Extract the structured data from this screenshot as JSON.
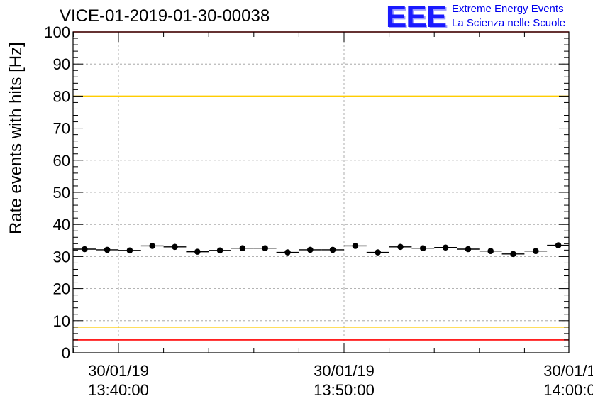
{
  "header": {
    "run_title": "VICE-01-2019-01-30-00038"
  },
  "logo": {
    "letters": "EEE",
    "line1": "Extreme Energy Events",
    "line2": "La Scienza nelle Scuole"
  },
  "chart_data": {
    "type": "scatter",
    "title": "VICE-01-2019-01-30-00038",
    "xlabel": "",
    "ylabel": "Rate events with hits [Hz]",
    "ylim": [
      0,
      100
    ],
    "xlim": [
      "2019-01-30 13:38:00",
      "2019-01-30 14:00:00"
    ],
    "yticks": [
      0,
      10,
      20,
      30,
      40,
      50,
      60,
      70,
      80,
      90,
      100
    ],
    "xticks": [
      {
        "x": "2019-01-30 13:40:00",
        "date": "30/01/19",
        "time": "13:40:00"
      },
      {
        "x": "2019-01-30 13:50:00",
        "date": "30/01/19",
        "time": "13:50:00"
      },
      {
        "x": "2019-01-30 14:00:00",
        "date": "30/01/1",
        "time": "14:00:0"
      }
    ],
    "grid": true,
    "reference_lines": [
      {
        "y": 100,
        "color": "#ff0000"
      },
      {
        "y": 80,
        "color": "#ffcc00"
      },
      {
        "y": 8,
        "color": "#ffcc00"
      },
      {
        "y": 4,
        "color": "#ff0000"
      }
    ],
    "series": [
      {
        "marker_color": "#000000",
        "bin_width_seconds": 60,
        "points": [
          {
            "x": "2019-01-30 13:38:30",
            "y": 32.3
          },
          {
            "x": "2019-01-30 13:39:30",
            "y": 32.1
          },
          {
            "x": "2019-01-30 13:40:30",
            "y": 31.9
          },
          {
            "x": "2019-01-30 13:41:30",
            "y": 33.3
          },
          {
            "x": "2019-01-30 13:42:30",
            "y": 33.0
          },
          {
            "x": "2019-01-30 13:43:30",
            "y": 31.5
          },
          {
            "x": "2019-01-30 13:44:30",
            "y": 31.9
          },
          {
            "x": "2019-01-30 13:45:30",
            "y": 32.6
          },
          {
            "x": "2019-01-30 13:46:30",
            "y": 32.6
          },
          {
            "x": "2019-01-30 13:47:30",
            "y": 31.3
          },
          {
            "x": "2019-01-30 13:48:30",
            "y": 32.1
          },
          {
            "x": "2019-01-30 13:49:30",
            "y": 32.1
          },
          {
            "x": "2019-01-30 13:50:30",
            "y": 33.3
          },
          {
            "x": "2019-01-30 13:51:30",
            "y": 31.3
          },
          {
            "x": "2019-01-30 13:52:30",
            "y": 33.0
          },
          {
            "x": "2019-01-30 13:53:30",
            "y": 32.6
          },
          {
            "x": "2019-01-30 13:54:30",
            "y": 32.8
          },
          {
            "x": "2019-01-30 13:55:30",
            "y": 32.3
          },
          {
            "x": "2019-01-30 13:56:30",
            "y": 31.7
          },
          {
            "x": "2019-01-30 13:57:30",
            "y": 30.8
          },
          {
            "x": "2019-01-30 13:58:30",
            "y": 31.7
          },
          {
            "x": "2019-01-30 13:59:30",
            "y": 33.5
          }
        ]
      }
    ]
  }
}
